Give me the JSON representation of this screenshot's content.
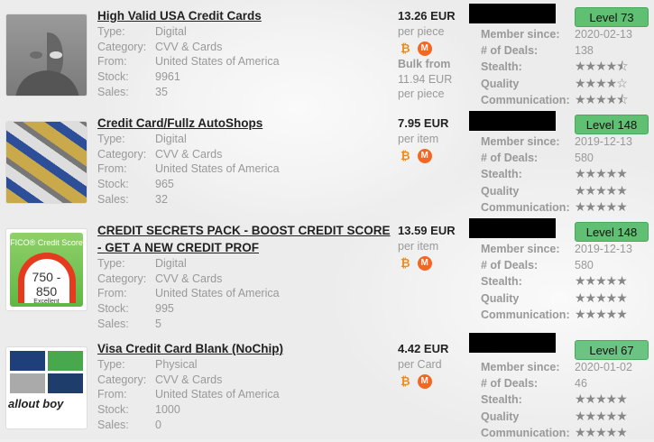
{
  "labels": {
    "type": "Type:",
    "category": "Category:",
    "from": "From:",
    "stock": "Stock:",
    "sales": "Sales:",
    "member_since": "Member since:",
    "deals": "# of Deals:",
    "stealth": "Stealth:",
    "quality": "Quality",
    "communication": "Communication:"
  },
  "colors": {
    "level_badge": "#5fbf73",
    "bitcoin": "#f08a1a",
    "monero": "#f26822"
  },
  "listings": [
    {
      "title": "High Valid USA Credit Cards",
      "type": "Digital",
      "category": "CVV & Cards",
      "from": "United States of America",
      "stock": "9961",
      "sales": "35",
      "price": "13.26 EUR",
      "unit": "per piece",
      "bulk_label": "Bulk from",
      "bulk_price": "11.94 EUR",
      "bulk_unit": "per piece",
      "coins": [
        "bitcoin-icon",
        "monero-icon"
      ],
      "level": "Level 73",
      "member_since": "2020-02-13",
      "deals": "138",
      "stealth": 4.5,
      "quality": 4,
      "communication": 4.5
    },
    {
      "title": "Credit Card/Fullz AutoShops",
      "type": "Digital",
      "category": "CVV & Cards",
      "from": "United States of America",
      "stock": "965",
      "sales": "32",
      "price": "7.95 EUR",
      "unit": "per item",
      "coins": [
        "bitcoin-icon",
        "monero-icon"
      ],
      "level": "Level 148",
      "member_since": "2019-12-13",
      "deals": "580",
      "stealth": 5,
      "quality": 5,
      "communication": 5
    },
    {
      "title": "CREDIT SECRETS PACK - BOOST CREDIT SCORE - GET A NEW CREDIT PROF",
      "type": "Digital",
      "category": "CVV & Cards",
      "from": "United States of America",
      "stock": "995",
      "sales": "5",
      "price": "13.59 EUR",
      "unit": "per item",
      "coins": [
        "bitcoin-icon",
        "monero-icon"
      ],
      "level": "Level 148",
      "member_since": "2019-12-13",
      "deals": "580",
      "stealth": 5,
      "quality": 5,
      "communication": 5,
      "thumb_text": {
        "heading": "FICO® Credit Score",
        "range": "750 - 850",
        "rating": "Excellent"
      }
    },
    {
      "title": "Visa Credit Card Blank (NoChip)",
      "type": "Physical",
      "category": "CVV & Cards",
      "from": "United States of America",
      "stock": "1000",
      "sales": "0",
      "price": "4.42 EUR",
      "unit": "per Card",
      "coins": [
        "bitcoin-icon",
        "monero-icon"
      ],
      "level": "Level 67",
      "member_since": "2020-01-02",
      "deals": "46",
      "stealth": 5,
      "quality": 5,
      "communication": 5,
      "thumb_text": {
        "logo": "allout boy"
      }
    }
  ]
}
